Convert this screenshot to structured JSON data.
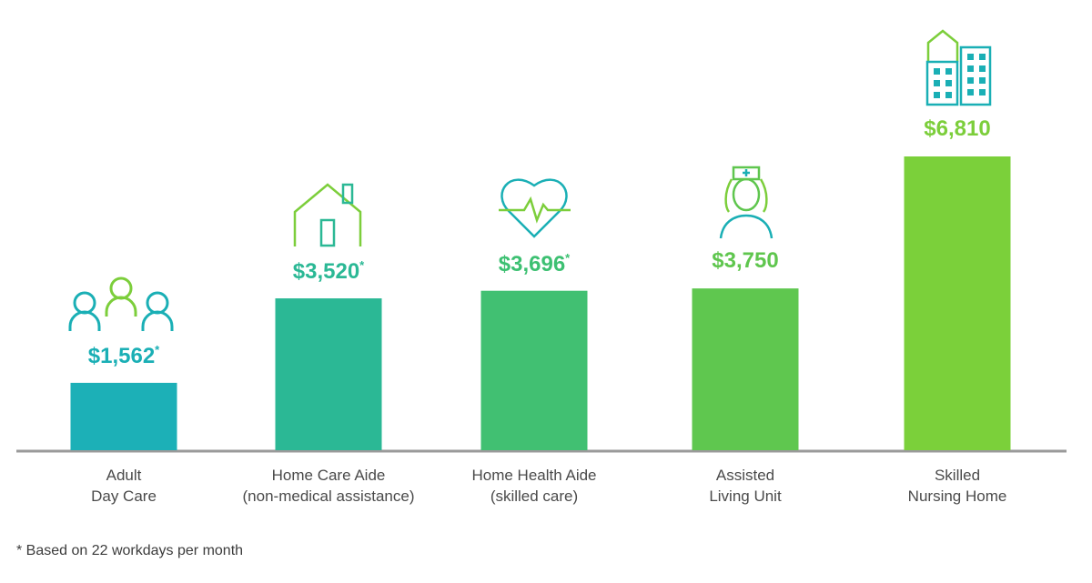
{
  "chart_data": {
    "type": "bar",
    "categories": [
      [
        "Adult",
        "Day Care"
      ],
      [
        "Home Care Aide",
        "(non-medical assistance)"
      ],
      [
        "Home Health Aide",
        "(skilled care)"
      ],
      [
        "Assisted",
        "Living Unit"
      ],
      [
        "Skilled",
        "Nursing Home"
      ]
    ],
    "values": [
      1562,
      3520,
      3696,
      3750,
      6810
    ],
    "value_labels": [
      "$1,562",
      "$3,520",
      "$3,696",
      "$3,750",
      "$6,810"
    ],
    "asterisk": [
      true,
      true,
      true,
      false,
      false
    ],
    "bar_colors": [
      "#1cb0b7",
      "#2bb895",
      "#41c072",
      "#5fc74f",
      "#7bd03a"
    ],
    "label_colors": [
      "#1aafb5",
      "#2bb895",
      "#3dc072",
      "#5fc64e",
      "#7cce3b"
    ],
    "icons": [
      "people-group-icon",
      "house-icon",
      "heart-heartbeat-icon",
      "nurse-icon",
      "buildings-icon"
    ],
    "ylim": [
      0,
      6810
    ],
    "grid": false,
    "axis_color": "#9a9a9a"
  },
  "footnote": "* Based on 22 workdays per month"
}
